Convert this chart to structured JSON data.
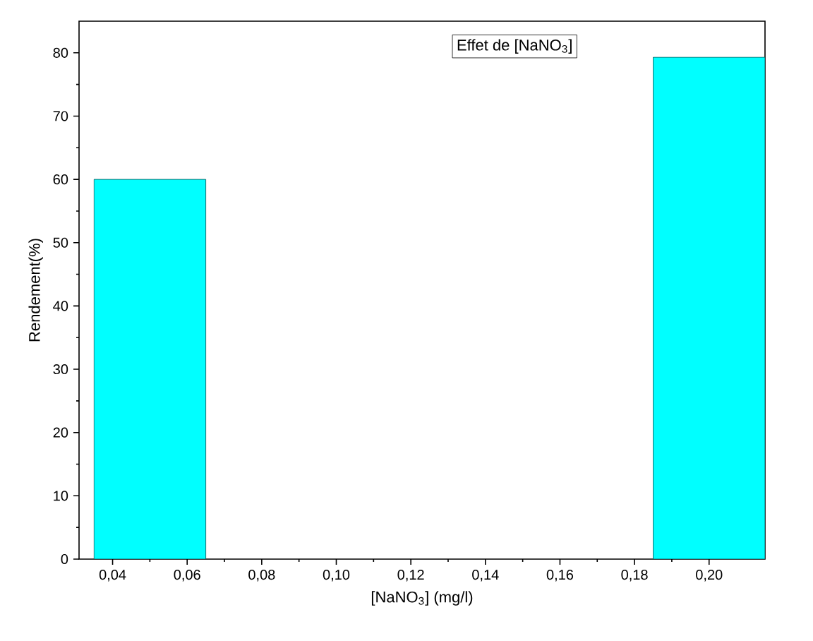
{
  "chart_data": {
    "type": "bar",
    "title": "Effet de [NaNO$_{3}$]",
    "xlabel": "[NaNO$_{3}$] (mg/l)",
    "ylabel": "Rendement(%)",
    "x": [
      0.05,
      0.2
    ],
    "values": [
      60,
      79.3
    ],
    "color": "#00ffff",
    "xlim": [
      0.031,
      0.215
    ],
    "ylim": [
      0,
      85
    ],
    "xticks": [
      {
        "value": 0.04,
        "label": "0,04"
      },
      {
        "value": 0.06,
        "label": "0,06"
      },
      {
        "value": 0.08,
        "label": "0,08"
      },
      {
        "value": 0.1,
        "label": "0,10"
      },
      {
        "value": 0.12,
        "label": "0,12"
      },
      {
        "value": 0.14,
        "label": "0,14"
      },
      {
        "value": 0.16,
        "label": "0,16"
      },
      {
        "value": 0.18,
        "label": "0,18"
      },
      {
        "value": 0.2,
        "label": "0,20"
      }
    ],
    "yticks": [
      0,
      10,
      20,
      30,
      40,
      50,
      60,
      70,
      80
    ]
  }
}
